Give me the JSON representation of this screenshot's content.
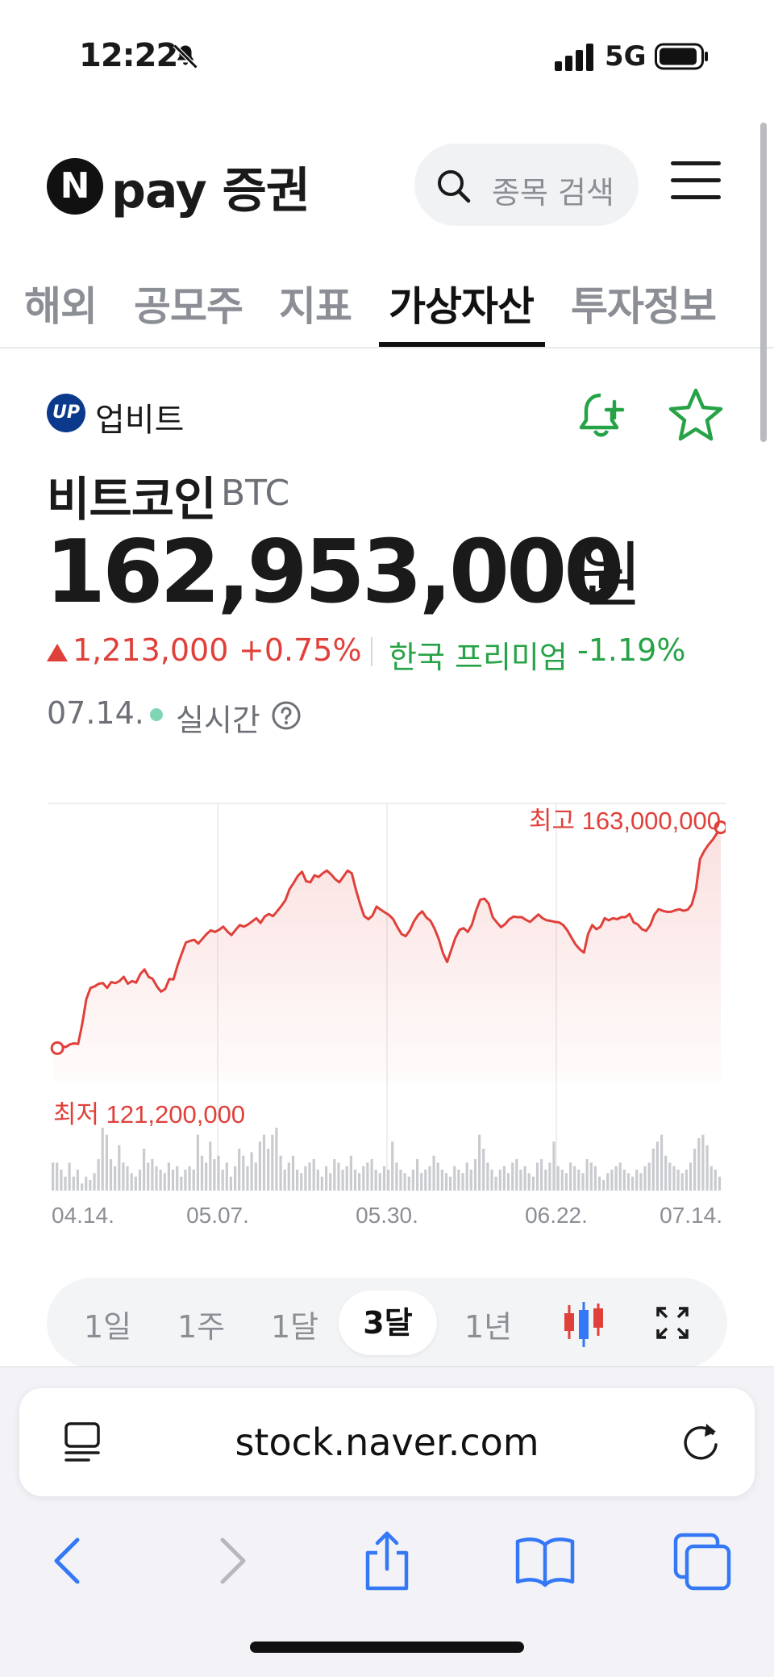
{
  "status": {
    "time": "12:22",
    "network": "5G"
  },
  "header": {
    "logo_letter": "N",
    "logo_text": "pay 증권",
    "search_placeholder": "종목 검색"
  },
  "tabs": [
    {
      "label": "해외",
      "active": false
    },
    {
      "label": "공모주",
      "active": false
    },
    {
      "label": "지표",
      "active": false
    },
    {
      "label": "가상자산",
      "active": true
    },
    {
      "label": "투자정보",
      "active": false
    }
  ],
  "exchange": {
    "logo_text": "UP",
    "name": "업비트"
  },
  "coin": {
    "name": "비트코인",
    "symbol": "BTC",
    "price": "162,953,000",
    "unit": "원",
    "change_amount": "1,213,000",
    "change_percent": "+0.75%",
    "premium_label": "한국 프리미엄",
    "premium_value": "-1.19%",
    "date": "07.14.",
    "live_label": "실시간"
  },
  "chart_data": {
    "type": "line",
    "high_label": "최고 163,000,000",
    "low_label": "최저 121,200,000",
    "x_tick_labels": [
      "04.14.",
      "05.07.",
      "05.30.",
      "06.22.",
      "07.14."
    ],
    "ylim": [
      115000000,
      166000000
    ],
    "values": [
      121800000,
      121200000,
      121600000,
      121400000,
      121900000,
      122100000,
      122000000,
      125800000,
      130500000,
      132600000,
      132900000,
      133400000,
      133500000,
      132600000,
      133700000,
      133500000,
      133900000,
      134700000,
      133400000,
      133900000,
      133600000,
      135200000,
      136100000,
      134700000,
      134300000,
      132900000,
      131900000,
      132400000,
      134300000,
      134200000,
      136900000,
      139100000,
      141200000,
      141500000,
      141700000,
      141000000,
      141900000,
      142800000,
      143500000,
      143200000,
      143600000,
      144200000,
      143300000,
      142600000,
      143600000,
      144500000,
      144200000,
      144600000,
      145200000,
      145800000,
      144900000,
      146100000,
      146600000,
      146200000,
      147100000,
      148100000,
      149200000,
      151300000,
      152500000,
      153800000,
      154600000,
      152800000,
      152600000,
      153900000,
      153600000,
      154300000,
      154800000,
      154100000,
      153200000,
      152600000,
      153700000,
      154800000,
      154300000,
      151200000,
      148500000,
      146200000,
      145600000,
      146300000,
      148000000,
      147400000,
      146900000,
      146400000,
      145600000,
      144100000,
      142800000,
      142400000,
      143500000,
      145200000,
      146400000,
      147100000,
      145900000,
      145300000,
      143800000,
      141800000,
      139200000,
      137500000,
      139800000,
      142100000,
      143600000,
      143900000,
      143200000,
      144600000,
      147300000,
      149300000,
      149500000,
      148600000,
      146000000,
      145000000,
      144100000,
      144700000,
      145600000,
      146100000,
      146000000,
      146000000,
      145500000,
      145100000,
      145800000,
      146500000,
      145800000,
      145400000,
      145300000,
      145100000,
      145000000,
      144500000,
      143500000,
      142100000,
      140800000,
      139900000,
      139300000,
      142800000,
      144500000,
      143700000,
      144200000,
      145800000,
      145400000,
      145800000,
      145600000,
      146000000,
      146000000,
      146600000,
      145000000,
      144600000,
      143700000,
      143400000,
      144500000,
      146500000,
      147500000,
      147200000,
      147000000,
      147000000,
      147300000,
      147500000,
      147200000,
      147400000,
      148400000,
      151200000,
      157000000,
      158500000,
      159700000,
      160600000,
      161800000,
      163000000
    ],
    "volume": [
      8,
      8,
      6,
      4,
      8,
      4,
      6,
      2,
      4,
      3,
      5,
      9,
      18,
      16,
      9,
      7,
      13,
      8,
      7,
      5,
      4,
      6,
      12,
      8,
      9,
      7,
      6,
      5,
      8,
      6,
      7,
      4,
      6,
      7,
      6,
      16,
      10,
      8,
      14,
      9,
      10,
      6,
      8,
      4,
      7,
      12,
      10,
      7,
      11,
      8,
      14,
      16,
      12,
      16,
      18,
      10,
      6,
      8,
      10,
      6,
      5,
      7,
      8,
      9,
      6,
      4,
      7,
      5,
      9,
      8,
      6,
      7,
      10,
      6,
      5,
      7,
      8,
      9,
      6,
      5,
      7,
      6,
      14,
      8,
      6,
      5,
      4,
      6,
      9,
      5,
      6,
      7,
      10,
      8,
      6,
      5,
      4,
      7,
      6,
      5,
      8,
      6,
      9,
      16,
      12,
      8,
      6,
      4,
      6,
      7,
      5,
      8,
      9,
      6,
      7,
      5,
      4,
      8,
      9,
      6,
      8,
      14,
      7,
      6,
      5,
      8,
      7,
      6,
      5,
      9,
      8,
      7,
      4,
      3,
      5,
      6,
      7,
      8,
      6,
      5,
      4,
      6,
      5,
      7,
      8,
      12,
      14,
      16,
      10,
      8,
      7,
      6,
      5,
      6,
      8,
      12,
      15,
      16,
      13,
      7,
      6,
      4
    ]
  },
  "periods": [
    {
      "label": "1일",
      "active": false
    },
    {
      "label": "1주",
      "active": false
    },
    {
      "label": "1달",
      "active": false
    },
    {
      "label": "3달",
      "active": true
    },
    {
      "label": "1년",
      "active": false
    }
  ],
  "browser": {
    "url": "stock.naver.com"
  },
  "colors": {
    "up": "#e0403a",
    "green": "#27a347",
    "accent_blue": "#3478f6"
  }
}
